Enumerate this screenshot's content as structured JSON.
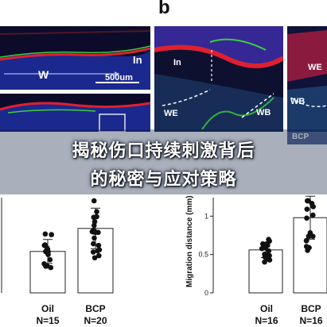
{
  "panel_b": {
    "letter": "b"
  },
  "micro_left_top": {
    "label_w": "W",
    "label_in": "In",
    "scalebar": "500um"
  },
  "micro_mid": {
    "label_in": "In",
    "label_we": "WE",
    "label_wb": "WB"
  },
  "micro_right": {
    "label_we": "WE",
    "label_wb": "WB",
    "label_bcp": "BCP"
  },
  "overlay_title": {
    "line1": "揭秘伤口持续刺激背后",
    "line2": "的秘密与应对策略"
  },
  "colors": {
    "nuclei": "#2a3dd6",
    "keratin": "#e02030",
    "green": "#3ecf3a",
    "banner": "#0a1e3c"
  },
  "chart_data": [
    {
      "type": "bar",
      "categories": [
        "Oil",
        "BCP"
      ],
      "category_labels": [
        {
          "name": "Oil",
          "n": "N=15"
        },
        {
          "name": "BCP",
          "n": "N=20"
        }
      ],
      "values": [
        0.45,
        0.7
      ],
      "ylabel": "",
      "ylim": [
        0,
        1.0
      ]
    },
    {
      "type": "bar",
      "categories": [
        "Oil",
        "BCP"
      ],
      "category_labels": [
        {
          "name": "Oil",
          "n": "N=16"
        },
        {
          "name": "BCP",
          "n": "N=16"
        }
      ],
      "values": [
        0.56,
        0.98
      ],
      "ylabel": "Migration distance (mm)",
      "yticks": [
        "0",
        "0.5",
        "1"
      ],
      "ylim": [
        0,
        1.2
      ]
    }
  ]
}
